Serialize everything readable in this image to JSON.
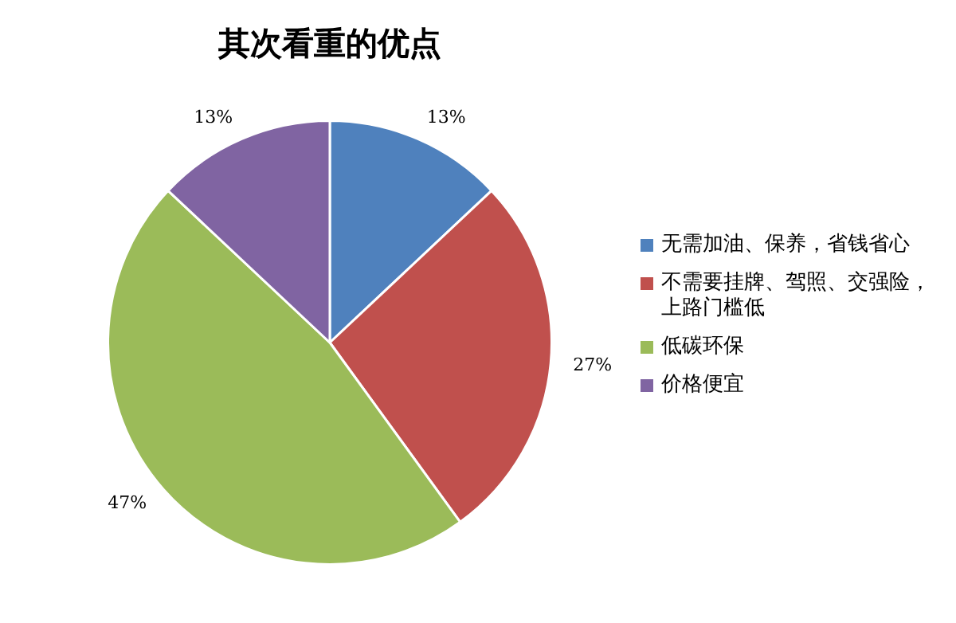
{
  "chart_data": {
    "type": "pie",
    "title": "其次看重的优点",
    "categories": [
      "无需加油、保养，省钱省心",
      "不需要挂牌、驾照、交强险，上路门槛低",
      "低碳环保",
      "价格便宜"
    ],
    "values": [
      13,
      27,
      47,
      13
    ],
    "colors": [
      "#4f81bd",
      "#c0504d",
      "#9bbb59",
      "#8064a2"
    ],
    "value_labels": [
      "13%",
      "27%",
      "47%",
      "13%"
    ],
    "legend": "right"
  }
}
